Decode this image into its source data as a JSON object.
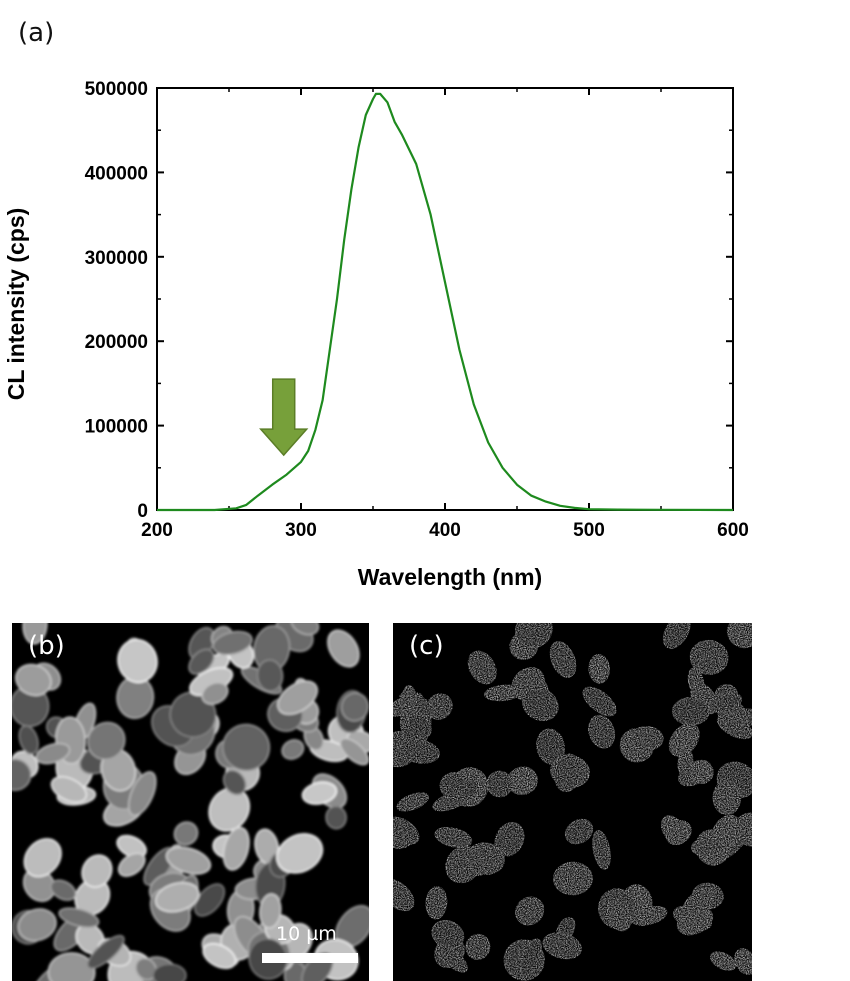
{
  "panels": {
    "a": "(a)",
    "b": "(b)",
    "c": "(c)"
  },
  "scalebar": {
    "label": "10 µm"
  },
  "colors": {
    "line": "#1e8a1e",
    "arrow_fill": "#77a03a",
    "arrow_stroke": "#5b7d27"
  },
  "chart_data": {
    "type": "line",
    "title": "",
    "xlabel": "Wavelength (nm)",
    "ylabel": "CL intensity (cps)",
    "xlim": [
      200,
      600
    ],
    "ylim": [
      0,
      500000
    ],
    "xticks": [
      200,
      300,
      400,
      500,
      600
    ],
    "yticks": [
      0,
      100000,
      200000,
      300000,
      400000,
      500000
    ],
    "grid": false,
    "series": [
      {
        "x": [
          200,
          240,
          255,
          262,
          270,
          280,
          290,
          300,
          305,
          310,
          315,
          320,
          325,
          330,
          335,
          340,
          345,
          350,
          352,
          355,
          360,
          365,
          370,
          380,
          390,
          400,
          410,
          420,
          430,
          440,
          450,
          460,
          470,
          480,
          490,
          500,
          520,
          550,
          600
        ],
        "y": [
          0,
          0,
          2000,
          6000,
          17000,
          30000,
          42000,
          57000,
          70000,
          95000,
          130000,
          190000,
          250000,
          320000,
          380000,
          430000,
          468000,
          487000,
          493000,
          493000,
          483000,
          460000,
          445000,
          410000,
          350000,
          270000,
          190000,
          125000,
          80000,
          50000,
          30000,
          17000,
          10000,
          5000,
          2500,
          1000,
          500,
          200,
          0
        ]
      }
    ],
    "annotations": [
      {
        "type": "arrow",
        "direction": "down",
        "x": 288,
        "y_tip": 65000,
        "y_tail": 155000
      }
    ]
  }
}
